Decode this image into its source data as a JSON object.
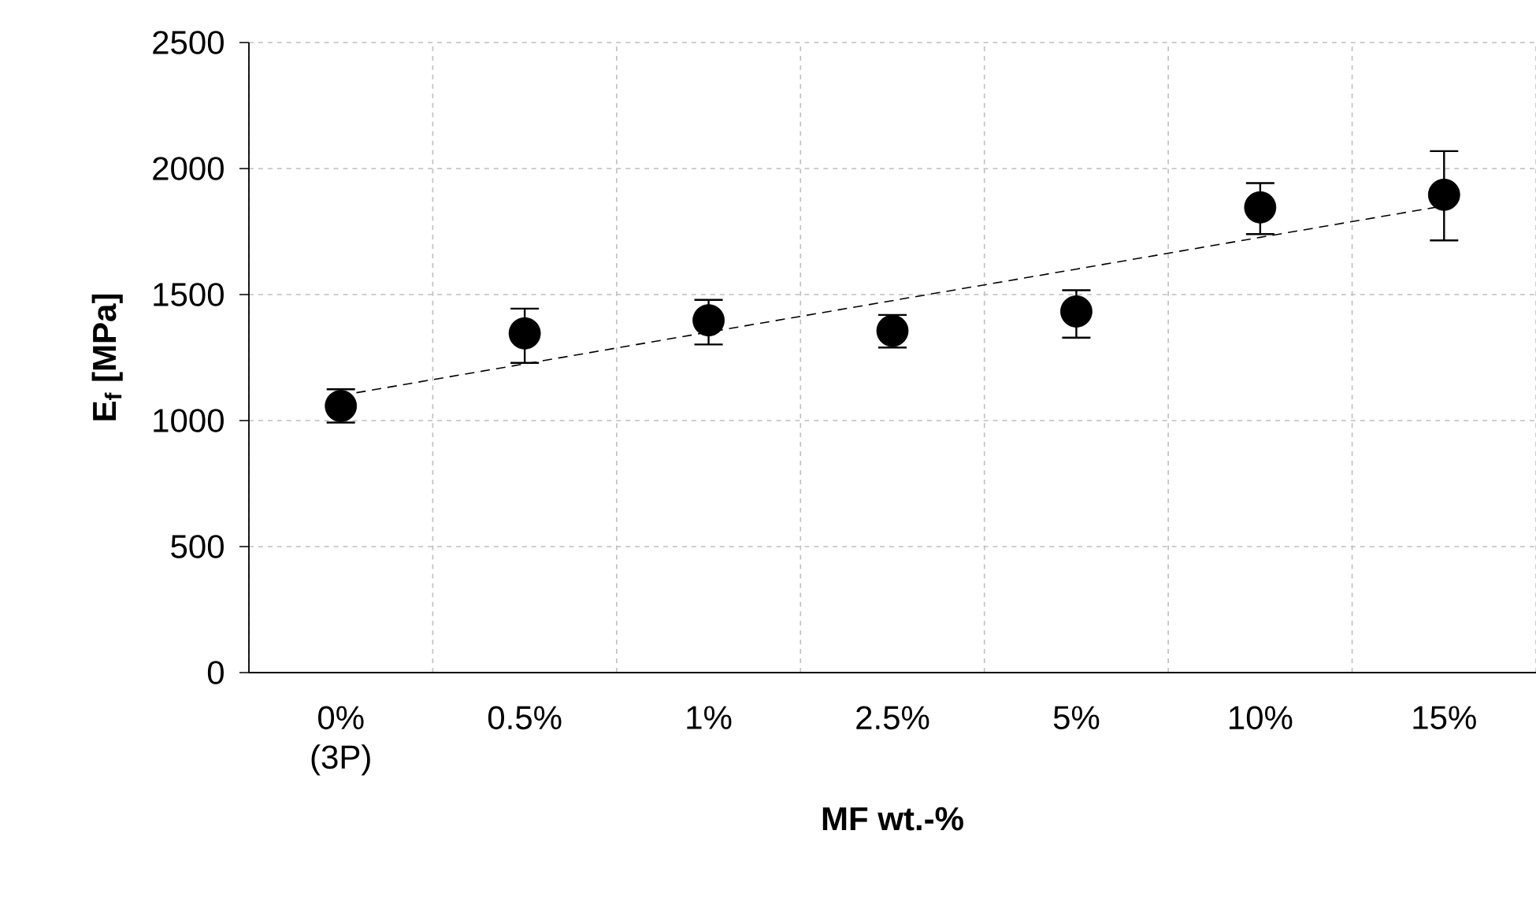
{
  "chart_data": {
    "type": "scatter",
    "xlabel": "**MF wt.-%**",
    "ylabel": "**E$_{f}$ [MPa]**",
    "categories": [
      "0% (3P)",
      "0.5%",
      "1%",
      "2.5%",
      "5%",
      "10%",
      "15%"
    ],
    "ylim": [
      0,
      2500
    ],
    "yticks": [
      0,
      500,
      1000,
      1500,
      2000,
      2500
    ],
    "grid": true,
    "series": [
      {
        "color": "#000000",
        "marker": "circle",
        "values": [
          1058,
          1346,
          1398,
          1356,
          1433,
          1846,
          1896
        ],
        "errors": [
          66,
          [
            1229,
            1444
          ],
          [
            1302,
            1479
          ],
          [
            1290,
            1419
          ],
          [
            1329,
            1517
          ],
          [
            1740,
            1942
          ],
          [
            1715,
            2069
          ]
        ]
      },
      {
        "type": "line",
        "color": "#000000",
        "line_style": "dashed",
        "marker": "none",
        "values": [
          1100,
          1225,
          1351,
          1476,
          1601,
          1727,
          1852
        ]
      }
    ]
  }
}
